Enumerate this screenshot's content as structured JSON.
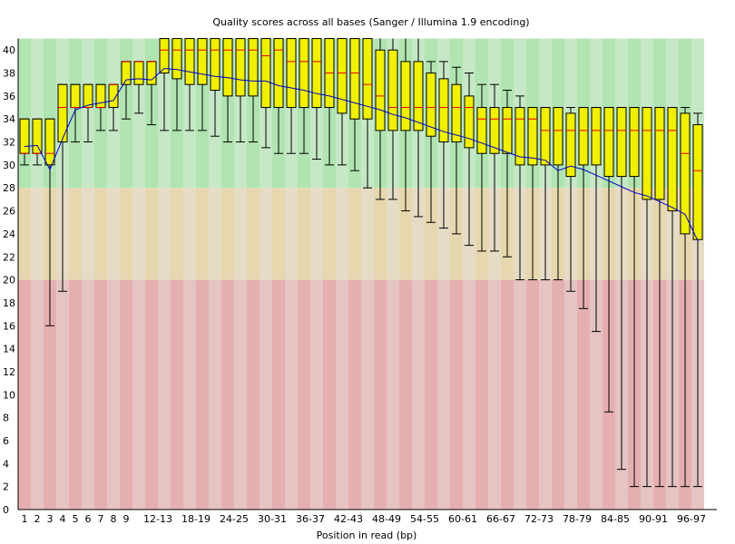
{
  "chart_data": {
    "type": "box",
    "title": "Quality scores across all bases (Sanger / Illumina 1.9 encoding)",
    "xlabel": "Position in read (bp)",
    "ylabel": "",
    "ylim": [
      0,
      41
    ],
    "yticks": [
      0,
      2,
      4,
      6,
      8,
      10,
      12,
      14,
      16,
      18,
      20,
      22,
      24,
      26,
      28,
      30,
      32,
      34,
      36,
      38,
      40
    ],
    "zones": [
      {
        "name": "good",
        "from": 28,
        "to": 41,
        "colors": [
          "#b0e4b0",
          "#c6e8c6"
        ]
      },
      {
        "name": "reasonable",
        "from": 20,
        "to": 28,
        "colors": [
          "#e6d7ae",
          "#e6dcc6"
        ]
      },
      {
        "name": "poor",
        "from": 0,
        "to": 20,
        "colors": [
          "#e6afaf",
          "#e6c4c4"
        ]
      }
    ],
    "colors": {
      "box": "#f0f000",
      "median": "#e00000",
      "mean": "#0000c8",
      "whisker": "#000000"
    },
    "categories": [
      "1",
      "2",
      "3",
      "4",
      "5",
      "6",
      "7",
      "8",
      "9",
      "10-11",
      "12-13",
      "14-15",
      "16-17",
      "18-19",
      "20-21",
      "22-23",
      "24-25",
      "26-27",
      "28-29",
      "30-31",
      "32-33",
      "34-35",
      "36-37",
      "38-39",
      "40-41",
      "42-43",
      "44-45",
      "46-47",
      "48-49",
      "50-51",
      "52-53",
      "54-55",
      "56-57",
      "58-59",
      "60-61",
      "62-63",
      "64-65",
      "66-67",
      "68-69",
      "70-71",
      "72-73",
      "74-75",
      "76-77",
      "78-79",
      "80-81",
      "82-83",
      "84-85",
      "86-87",
      "88-89",
      "90-91",
      "92-93",
      "94-95",
      "96-97",
      "98-99"
    ],
    "tick_labels": [
      "1",
      "2",
      "3",
      "4",
      "5",
      "6",
      "7",
      "8",
      "9",
      "12-13",
      "18-19",
      "24-25",
      "30-31",
      "36-37",
      "42-43",
      "48-49",
      "54-55",
      "60-61",
      "66-67",
      "72-73",
      "78-79",
      "84-85",
      "90-91",
      "96-97"
    ],
    "tick_indices": [
      0,
      1,
      2,
      3,
      4,
      5,
      6,
      7,
      8,
      10,
      13,
      16,
      19,
      22,
      25,
      28,
      31,
      34,
      37,
      40,
      43,
      46,
      49,
      52
    ],
    "whisker_low": [
      30,
      30,
      16,
      19,
      32,
      32,
      33,
      33,
      34,
      34.5,
      33.5,
      33,
      33,
      33,
      33,
      32.5,
      32,
      32,
      32,
      31.5,
      31,
      31,
      31,
      30.5,
      30,
      30,
      29.5,
      28,
      27,
      27,
      26,
      25.5,
      25,
      24.5,
      24,
      23,
      22.5,
      22.5,
      22,
      20,
      20,
      20,
      20,
      19,
      17.5,
      15.5,
      8.5,
      3.5,
      2,
      2,
      2,
      2,
      2,
      2
    ],
    "q1": [
      31,
      31,
      30,
      32,
      35,
      35,
      35,
      35,
      37,
      37,
      37,
      38,
      37.5,
      37,
      37,
      36.5,
      36,
      36,
      36,
      35,
      35,
      35,
      35,
      35,
      35,
      34.5,
      34,
      34,
      33,
      33,
      33,
      33,
      32.5,
      32,
      32,
      31.5,
      31,
      31,
      31,
      30,
      30,
      30,
      30,
      29,
      30,
      30,
      29,
      29,
      29,
      27,
      27,
      26,
      24,
      23.5
    ],
    "median": [
      31,
      31,
      31,
      35,
      35,
      35,
      35,
      37,
      39,
      39,
      39,
      40,
      40,
      40,
      40,
      40,
      40,
      40,
      40,
      39.5,
      40,
      39,
      39,
      39,
      38,
      38,
      38,
      37,
      36,
      35,
      35,
      35,
      35,
      35,
      35,
      35,
      34,
      34,
      34,
      34,
      34,
      33,
      33,
      33,
      33,
      33,
      33,
      33,
      33,
      33,
      33,
      33,
      31,
      29.5
    ],
    "q3": [
      34,
      34,
      34,
      37,
      37,
      37,
      37,
      37,
      39,
      39,
      39,
      41,
      41,
      41,
      41,
      41,
      41,
      41,
      41,
      41,
      41,
      41,
      41,
      41,
      41,
      41,
      41,
      41,
      40,
      40,
      39,
      39,
      38,
      37.5,
      37,
      36,
      35,
      35,
      35,
      35,
      35,
      35,
      35,
      34.5,
      35,
      35,
      35,
      35,
      35,
      35,
      35,
      35,
      34.5,
      33.5
    ],
    "whisker_high": [
      34,
      34,
      34,
      37,
      37,
      37,
      37,
      37,
      39,
      39,
      39,
      41,
      41,
      41,
      41,
      41,
      41,
      41,
      41,
      41,
      41,
      41,
      41,
      41,
      41,
      41,
      41,
      41,
      41,
      41,
      41,
      41,
      39,
      39,
      38.5,
      38,
      37,
      37,
      36.5,
      36,
      35,
      35,
      35,
      35,
      35,
      35,
      35,
      35,
      35,
      35,
      35,
      35,
      35,
      34.5
    ],
    "mean": [
      31.6,
      31.7,
      29.6,
      32.3,
      34.8,
      35.2,
      35.4,
      35.6,
      37.4,
      37.5,
      37.4,
      38.4,
      38.3,
      38.1,
      37.9,
      37.7,
      37.6,
      37.4,
      37.3,
      37.3,
      36.9,
      36.7,
      36.5,
      36.2,
      36.0,
      35.7,
      35.4,
      35.1,
      34.8,
      34.4,
      34.1,
      33.7,
      33.3,
      32.9,
      32.6,
      32.3,
      31.9,
      31.5,
      31.1,
      30.7,
      30.6,
      30.4,
      29.5,
      29.9,
      29.6,
      29.1,
      28.6,
      28.1,
      27.6,
      27.3,
      26.8,
      26.3,
      25.7,
      23.4
    ]
  }
}
